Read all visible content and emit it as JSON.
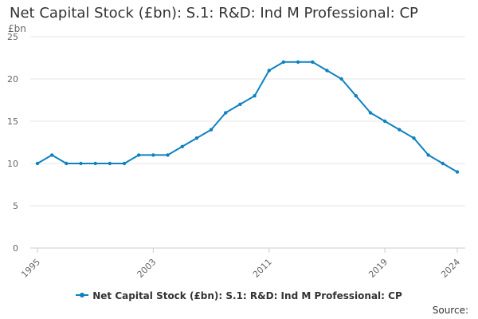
{
  "chart_data": {
    "type": "line",
    "title": "Net Capital Stock (£bn): S.1: R&D: Ind M Professional: CP",
    "ylabel": "£bn",
    "xlabel": "",
    "x": [
      1995,
      1996,
      1997,
      1998,
      1999,
      2000,
      2001,
      2002,
      2003,
      2004,
      2005,
      2006,
      2007,
      2008,
      2009,
      2010,
      2011,
      2012,
      2013,
      2014,
      2015,
      2016,
      2017,
      2018,
      2019,
      2020,
      2021,
      2022,
      2023,
      2024
    ],
    "x_tick_labels": [
      "1995",
      "2003",
      "2011",
      "2019",
      "2024"
    ],
    "x_ticks": [
      1995,
      2003,
      2011,
      2019,
      2024
    ],
    "ylim": [
      0,
      25
    ],
    "y_ticks": [
      0,
      5,
      10,
      15,
      20,
      25
    ],
    "series": [
      {
        "name": "Net Capital Stock (£bn): S.1: R&D: Ind M Professional: CP",
        "color": "#0f81c0",
        "values": [
          10,
          11,
          10,
          10,
          10,
          10,
          10,
          11,
          11,
          11,
          12,
          13,
          14,
          16,
          17,
          18,
          21,
          22,
          22,
          22,
          21,
          20,
          18,
          16,
          15,
          14,
          13,
          11,
          10,
          9
        ]
      }
    ],
    "grid": "horizontal",
    "legend_position": "bottom"
  },
  "source_label": "Source:"
}
